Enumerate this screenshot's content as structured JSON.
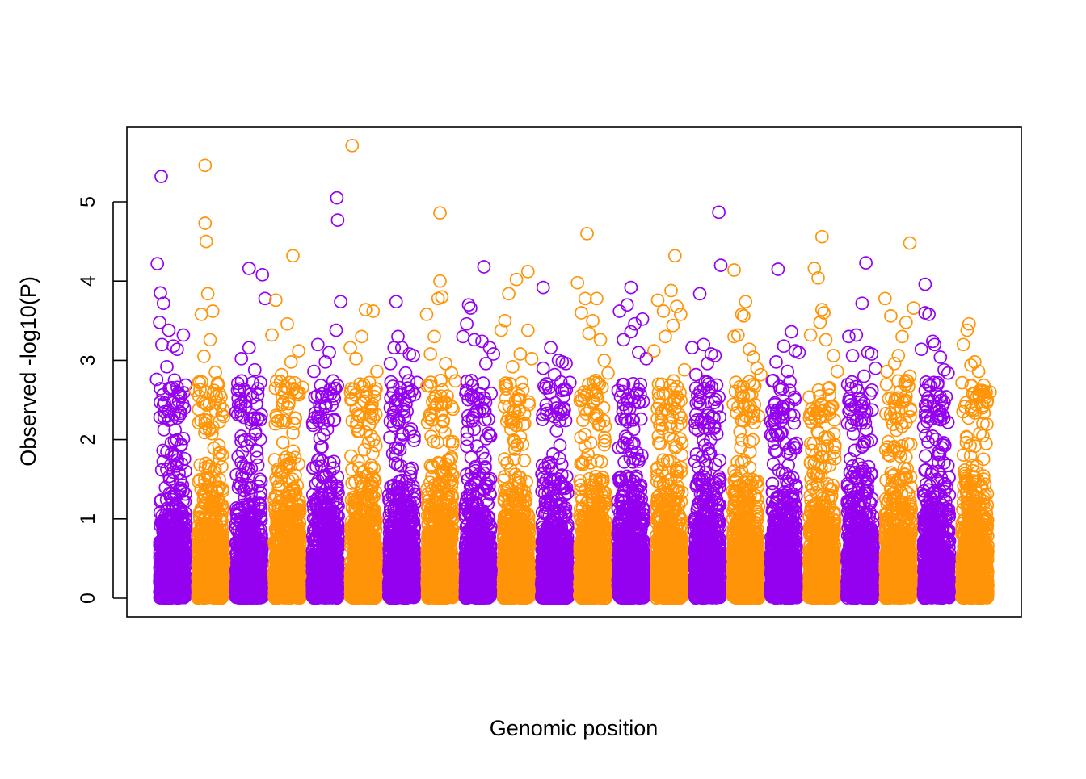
{
  "chart_data": {
    "type": "scatter",
    "title": "",
    "xlabel": "Genomic position",
    "ylabel": "Observed -log10(P)",
    "ylim": [
      0,
      5.9
    ],
    "yticks": [
      0,
      1,
      2,
      3,
      4,
      5
    ],
    "xticks": [],
    "grid": false,
    "legend": "none",
    "marker": "open-circle",
    "colors": {
      "odd": "#9400F0",
      "even": "#FF9408"
    },
    "series": [
      {
        "chromosome": 1,
        "color": "#9400F0",
        "peak": 5.32,
        "points": [
          [
            0.1,
            4.22
          ],
          [
            0.18,
            3.85
          ],
          [
            0.26,
            3.72
          ],
          [
            0.16,
            3.48
          ],
          [
            0.4,
            3.38
          ],
          [
            0.78,
            3.32
          ],
          [
            0.22,
            3.2
          ],
          [
            0.52,
            3.18
          ],
          [
            0.62,
            3.14
          ],
          [
            0.35,
            2.92
          ],
          [
            0.55,
            2.75
          ],
          [
            0.08,
            2.76
          ]
        ]
      },
      {
        "chromosome": 2,
        "color": "#FF9408",
        "peak": 5.46,
        "points": [
          [
            0.35,
            4.73
          ],
          [
            0.38,
            4.5
          ],
          [
            0.42,
            3.84
          ],
          [
            0.55,
            3.62
          ],
          [
            0.25,
            3.58
          ],
          [
            0.48,
            3.26
          ],
          [
            0.32,
            3.05
          ],
          [
            0.62,
            2.85
          ],
          [
            0.2,
            2.72
          ],
          [
            0.1,
            2.62
          ]
        ]
      },
      {
        "chromosome": 3,
        "color": "#9400F0",
        "peak": 4.16,
        "points": [
          [
            0.85,
            4.08
          ],
          [
            0.92,
            3.78
          ],
          [
            0.5,
            3.16
          ],
          [
            0.3,
            3.02
          ],
          [
            0.65,
            2.88
          ],
          [
            0.8,
            2.72
          ],
          [
            0.2,
            2.62
          ]
        ]
      },
      {
        "chromosome": 4,
        "color": "#FF9408",
        "peak": 4.32,
        "points": [
          [
            0.2,
            3.76
          ],
          [
            0.5,
            3.46
          ],
          [
            0.1,
            3.32
          ],
          [
            0.8,
            3.12
          ],
          [
            0.6,
            2.98
          ],
          [
            0.35,
            2.82
          ],
          [
            0.9,
            2.66
          ]
        ]
      },
      {
        "chromosome": 5,
        "color": "#9400F0",
        "peak": 5.05,
        "points": [
          [
            0.82,
            4.77
          ],
          [
            0.9,
            3.74
          ],
          [
            0.78,
            3.38
          ],
          [
            0.3,
            3.2
          ],
          [
            0.6,
            3.1
          ],
          [
            0.5,
            2.98
          ],
          [
            0.2,
            2.86
          ],
          [
            0.7,
            2.74
          ]
        ]
      },
      {
        "chromosome": 6,
        "color": "#FF9408",
        "peak": 5.71,
        "points": [
          [
            0.55,
            3.64
          ],
          [
            0.75,
            3.62
          ],
          [
            0.45,
            3.3
          ],
          [
            0.15,
            3.16
          ],
          [
            0.3,
            3.02
          ],
          [
            0.85,
            2.86
          ],
          [
            0.65,
            2.72
          ],
          [
            0.25,
            2.64
          ]
        ]
      },
      {
        "chromosome": 7,
        "color": "#9400F0",
        "peak": 3.74,
        "points": [
          [
            0.4,
            3.3
          ],
          [
            0.3,
            3.16
          ],
          [
            0.5,
            3.16
          ],
          [
            0.7,
            3.08
          ],
          [
            0.8,
            3.06
          ],
          [
            0.2,
            2.96
          ],
          [
            0.6,
            2.84
          ],
          [
            0.9,
            2.72
          ]
        ]
      },
      {
        "chromosome": 8,
        "color": "#FF9408",
        "peak": 4.86,
        "points": [
          [
            0.5,
            4.0
          ],
          [
            0.15,
            3.58
          ],
          [
            0.45,
            3.78
          ],
          [
            0.55,
            3.8
          ],
          [
            0.35,
            3.3
          ],
          [
            0.25,
            3.08
          ],
          [
            0.65,
            2.96
          ],
          [
            0.8,
            2.84
          ],
          [
            0.9,
            2.74
          ]
        ]
      },
      {
        "chromosome": 9,
        "color": "#9400F0",
        "peak": 4.18,
        "points": [
          [
            0.25,
            3.7
          ],
          [
            0.3,
            3.66
          ],
          [
            0.2,
            3.46
          ],
          [
            0.1,
            3.3
          ],
          [
            0.4,
            3.26
          ],
          [
            0.6,
            3.24
          ],
          [
            0.8,
            3.16
          ],
          [
            0.9,
            3.08
          ],
          [
            0.7,
            2.96
          ]
        ]
      },
      {
        "chromosome": 10,
        "color": "#FF9408",
        "peak": 4.12,
        "points": [
          [
            0.5,
            4.02
          ],
          [
            0.3,
            3.84
          ],
          [
            0.2,
            3.5
          ],
          [
            0.1,
            3.38
          ],
          [
            0.8,
            3.38
          ],
          [
            0.6,
            3.08
          ],
          [
            0.9,
            3.02
          ],
          [
            0.4,
            2.92
          ]
        ]
      },
      {
        "chromosome": 11,
        "color": "#9400F0",
        "peak": 3.92,
        "points": [
          [
            0.4,
            3.16
          ],
          [
            0.6,
            3.0
          ],
          [
            0.7,
            2.98
          ],
          [
            0.8,
            2.96
          ],
          [
            0.2,
            2.9
          ],
          [
            0.5,
            2.82
          ],
          [
            0.9,
            2.72
          ]
        ]
      },
      {
        "chromosome": 12,
        "color": "#FF9408",
        "peak": 4.6,
        "points": [
          [
            0.1,
            3.98
          ],
          [
            0.3,
            3.78
          ],
          [
            0.6,
            3.78
          ],
          [
            0.2,
            3.6
          ],
          [
            0.5,
            3.5
          ],
          [
            0.4,
            3.34
          ],
          [
            0.7,
            3.26
          ],
          [
            0.8,
            3.0
          ],
          [
            0.9,
            2.84
          ]
        ]
      },
      {
        "chromosome": 13,
        "color": "#9400F0",
        "peak": 3.92,
        "points": [
          [
            0.4,
            3.7
          ],
          [
            0.2,
            3.62
          ],
          [
            0.6,
            3.46
          ],
          [
            0.8,
            3.52
          ],
          [
            0.5,
            3.36
          ],
          [
            0.3,
            3.26
          ],
          [
            0.7,
            3.1
          ],
          [
            0.9,
            3.02
          ]
        ]
      },
      {
        "chromosome": 14,
        "color": "#FF9408",
        "peak": 4.32,
        "points": [
          [
            0.55,
            3.88
          ],
          [
            0.2,
            3.76
          ],
          [
            0.35,
            3.62
          ],
          [
            0.7,
            3.68
          ],
          [
            0.8,
            3.58
          ],
          [
            0.6,
            3.44
          ],
          [
            0.4,
            3.3
          ],
          [
            0.1,
            3.12
          ],
          [
            0.9,
            2.88
          ]
        ]
      },
      {
        "chromosome": 15,
        "color": "#9400F0",
        "peak": 4.87,
        "points": [
          [
            0.85,
            4.2
          ],
          [
            0.3,
            3.84
          ],
          [
            0.1,
            3.16
          ],
          [
            0.4,
            3.2
          ],
          [
            0.6,
            3.08
          ],
          [
            0.7,
            3.06
          ],
          [
            0.5,
            2.96
          ],
          [
            0.2,
            2.82
          ]
        ]
      },
      {
        "chromosome": 16,
        "color": "#FF9408",
        "peak": 4.14,
        "points": [
          [
            0.4,
            3.58
          ],
          [
            0.45,
            3.56
          ],
          [
            0.5,
            3.74
          ],
          [
            0.2,
            3.3
          ],
          [
            0.3,
            3.32
          ],
          [
            0.6,
            3.14
          ],
          [
            0.7,
            3.04
          ],
          [
            0.8,
            2.9
          ],
          [
            0.9,
            2.82
          ]
        ]
      },
      {
        "chromosome": 17,
        "color": "#9400F0",
        "peak": 4.15,
        "points": [
          [
            0.7,
            3.36
          ],
          [
            0.5,
            3.18
          ],
          [
            0.8,
            3.12
          ],
          [
            0.9,
            3.1
          ],
          [
            0.3,
            2.98
          ],
          [
            0.6,
            2.86
          ],
          [
            0.2,
            2.74
          ]
        ]
      },
      {
        "chromosome": 18,
        "color": "#FF9408",
        "peak": 4.56,
        "points": [
          [
            0.4,
            4.04
          ],
          [
            0.3,
            4.16
          ],
          [
            0.5,
            3.64
          ],
          [
            0.55,
            3.6
          ],
          [
            0.45,
            3.48
          ],
          [
            0.2,
            3.32
          ],
          [
            0.6,
            3.26
          ],
          [
            0.8,
            3.06
          ],
          [
            0.9,
            2.86
          ]
        ]
      },
      {
        "chromosome": 19,
        "color": "#9400F0",
        "peak": 4.23,
        "points": [
          [
            0.55,
            3.72
          ],
          [
            0.4,
            3.32
          ],
          [
            0.2,
            3.3
          ],
          [
            0.7,
            3.1
          ],
          [
            0.8,
            3.08
          ],
          [
            0.3,
            3.06
          ],
          [
            0.9,
            2.9
          ],
          [
            0.6,
            2.8
          ]
        ]
      },
      {
        "chromosome": 20,
        "color": "#FF9408",
        "peak": 4.48,
        "points": [
          [
            0.15,
            3.78
          ],
          [
            0.3,
            3.56
          ],
          [
            0.7,
            3.48
          ],
          [
            0.6,
            3.3
          ],
          [
            0.5,
            3.06
          ],
          [
            0.4,
            2.96
          ],
          [
            0.2,
            2.86
          ],
          [
            0.8,
            2.8
          ],
          [
            0.9,
            3.66
          ]
        ]
      },
      {
        "chromosome": 21,
        "color": "#9400F0",
        "peak": 3.96,
        "points": [
          [
            0.3,
            3.58
          ],
          [
            0.2,
            3.6
          ],
          [
            0.4,
            3.24
          ],
          [
            0.45,
            3.2
          ],
          [
            0.1,
            3.14
          ],
          [
            0.6,
            3.04
          ],
          [
            0.7,
            2.88
          ],
          [
            0.8,
            2.84
          ]
        ]
      },
      {
        "chromosome": 22,
        "color": "#FF9408",
        "peak": 3.46,
        "points": [
          [
            0.3,
            3.38
          ],
          [
            0.2,
            3.2
          ],
          [
            0.5,
            2.98
          ],
          [
            0.4,
            2.94
          ],
          [
            0.6,
            2.86
          ],
          [
            0.7,
            2.62
          ],
          [
            0.8,
            2.6
          ],
          [
            0.9,
            2.6
          ]
        ]
      }
    ]
  }
}
